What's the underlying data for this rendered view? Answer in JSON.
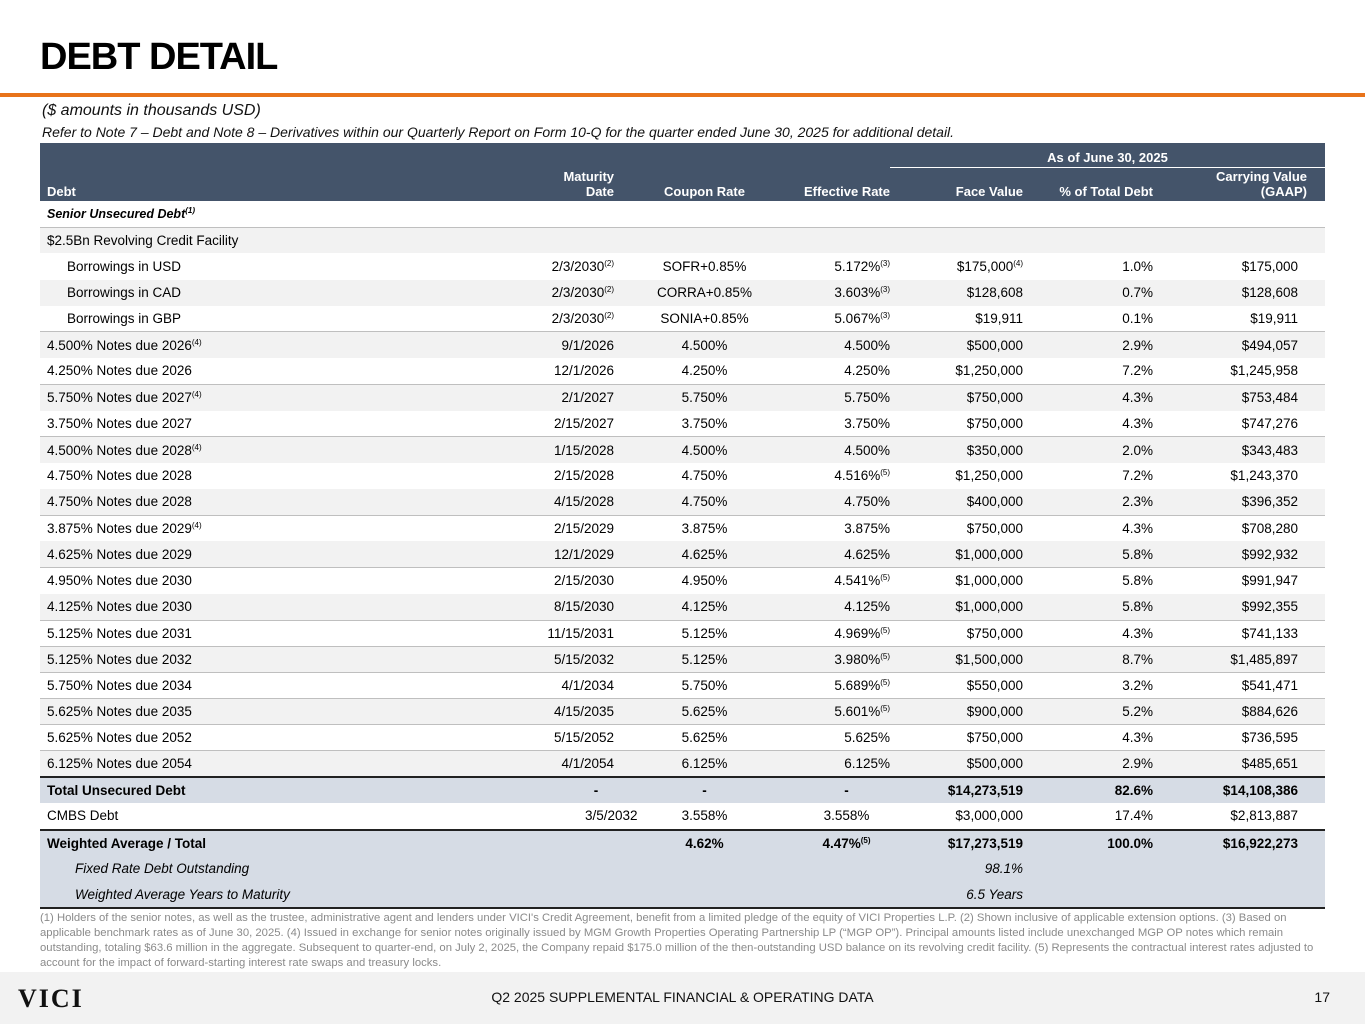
{
  "title": "DEBT DETAIL",
  "subtitle": "($ amounts in thousands USD)",
  "reference": "Refer to Note 7 – Debt and Note 8 – Derivatives within our Quarterly Report on Form 10-Q for the quarter ended June 30, 2025 for additional detail.",
  "header": {
    "as_of": "As of June 30, 2025",
    "debt": "Debt",
    "maturity": "Maturity Date",
    "coupon": "Coupon Rate",
    "effective": "Effective Rate",
    "face": "Face Value",
    "pct": "% of Total Debt",
    "carrying": "Carrying Value (GAAP)"
  },
  "section": {
    "label": "Senior Unsecured Debt",
    "sup": "(1)"
  },
  "facility": "$2.5Bn Revolving Credit Facility",
  "rows": [
    {
      "name": "Borrowings in USD",
      "ns": "",
      "mat": "2/3/2030",
      "ms": "(2)",
      "coupon": "SOFR+0.85%",
      "eff": "5.172%",
      "es": "(3)",
      "face": "$175,000",
      "fs": "(4)",
      "pct": "1.0%",
      "carry": "$175,000"
    },
    {
      "name": "Borrowings in CAD",
      "ns": "",
      "mat": "2/3/2030",
      "ms": "(2)",
      "coupon": "CORRA+0.85%",
      "eff": "3.603%",
      "es": "(3)",
      "face": "$128,608",
      "fs": "",
      "pct": "0.7%",
      "carry": "$128,608"
    },
    {
      "name": "Borrowings in GBP",
      "ns": "",
      "mat": "2/3/2030",
      "ms": "(2)",
      "coupon": "SONIA+0.85%",
      "eff": "5.067%",
      "es": "(3)",
      "face": "$19,911",
      "fs": "",
      "pct": "0.1%",
      "carry": "$19,911"
    },
    {
      "name": "4.500% Notes due 2026",
      "ns": "(4)",
      "mat": "9/1/2026",
      "ms": "",
      "coupon": "4.500%",
      "eff": "4.500%",
      "es": "",
      "face": "$500,000",
      "fs": "",
      "pct": "2.9%",
      "carry": "$494,057"
    },
    {
      "name": "4.250% Notes due 2026",
      "ns": "",
      "mat": "12/1/2026",
      "ms": "",
      "coupon": "4.250%",
      "eff": "4.250%",
      "es": "",
      "face": "$1,250,000",
      "fs": "",
      "pct": "7.2%",
      "carry": "$1,245,958"
    },
    {
      "name": "5.750% Notes due 2027",
      "ns": "(4)",
      "mat": "2/1/2027",
      "ms": "",
      "coupon": "5.750%",
      "eff": "5.750%",
      "es": "",
      "face": "$750,000",
      "fs": "",
      "pct": "4.3%",
      "carry": "$753,484"
    },
    {
      "name": "3.750% Notes due 2027",
      "ns": "",
      "mat": "2/15/2027",
      "ms": "",
      "coupon": "3.750%",
      "eff": "3.750%",
      "es": "",
      "face": "$750,000",
      "fs": "",
      "pct": "4.3%",
      "carry": "$747,276"
    },
    {
      "name": "4.500% Notes due 2028",
      "ns": "(4)",
      "mat": "1/15/2028",
      "ms": "",
      "coupon": "4.500%",
      "eff": "4.500%",
      "es": "",
      "face": "$350,000",
      "fs": "",
      "pct": "2.0%",
      "carry": "$343,483"
    },
    {
      "name": "4.750% Notes due 2028",
      "ns": "",
      "mat": "2/15/2028",
      "ms": "",
      "coupon": "4.750%",
      "eff": "4.516%",
      "es": "(5)",
      "face": "$1,250,000",
      "fs": "",
      "pct": "7.2%",
      "carry": "$1,243,370"
    },
    {
      "name": "4.750% Notes due 2028",
      "ns": "",
      "mat": "4/15/2028",
      "ms": "",
      "coupon": "4.750%",
      "eff": "4.750%",
      "es": "",
      "face": "$400,000",
      "fs": "",
      "pct": "2.3%",
      "carry": "$396,352"
    },
    {
      "name": "3.875% Notes due 2029",
      "ns": "(4)",
      "mat": "2/15/2029",
      "ms": "",
      "coupon": "3.875%",
      "eff": "3.875%",
      "es": "",
      "face": "$750,000",
      "fs": "",
      "pct": "4.3%",
      "carry": "$708,280"
    },
    {
      "name": "4.625% Notes due 2029",
      "ns": "",
      "mat": "12/1/2029",
      "ms": "",
      "coupon": "4.625%",
      "eff": "4.625%",
      "es": "",
      "face": "$1,000,000",
      "fs": "",
      "pct": "5.8%",
      "carry": "$992,932"
    },
    {
      "name": "4.950% Notes due 2030",
      "ns": "",
      "mat": "2/15/2030",
      "ms": "",
      "coupon": "4.950%",
      "eff": "4.541%",
      "es": "(5)",
      "face": "$1,000,000",
      "fs": "",
      "pct": "5.8%",
      "carry": "$991,947"
    },
    {
      "name": "4.125% Notes due 2030",
      "ns": "",
      "mat": "8/15/2030",
      "ms": "",
      "coupon": "4.125%",
      "eff": "4.125%",
      "es": "",
      "face": "$1,000,000",
      "fs": "",
      "pct": "5.8%",
      "carry": "$992,355"
    },
    {
      "name": "5.125% Notes due 2031",
      "ns": "",
      "mat": "11/15/2031",
      "ms": "",
      "coupon": "5.125%",
      "eff": "4.969%",
      "es": "(5)",
      "face": "$750,000",
      "fs": "",
      "pct": "4.3%",
      "carry": "$741,133"
    },
    {
      "name": "5.125% Notes due 2032",
      "ns": "",
      "mat": "5/15/2032",
      "ms": "",
      "coupon": "5.125%",
      "eff": "3.980%",
      "es": "(5)",
      "face": "$1,500,000",
      "fs": "",
      "pct": "8.7%",
      "carry": "$1,485,897"
    },
    {
      "name": "5.750% Notes due 2034",
      "ns": "",
      "mat": "4/1/2034",
      "ms": "",
      "coupon": "5.750%",
      "eff": "5.689%",
      "es": "(5)",
      "face": "$550,000",
      "fs": "",
      "pct": "3.2%",
      "carry": "$541,471"
    },
    {
      "name": "5.625% Notes due 2035",
      "ns": "",
      "mat": "4/15/2035",
      "ms": "",
      "coupon": "5.625%",
      "eff": "5.601%",
      "es": "(5)",
      "face": "$900,000",
      "fs": "",
      "pct": "5.2%",
      "carry": "$884,626"
    },
    {
      "name": "5.625% Notes due 2052",
      "ns": "",
      "mat": "5/15/2052",
      "ms": "",
      "coupon": "5.625%",
      "eff": "5.625%",
      "es": "",
      "face": "$750,000",
      "fs": "",
      "pct": "4.3%",
      "carry": "$736,595"
    },
    {
      "name": "6.125% Notes due 2054",
      "ns": "",
      "mat": "4/1/2054",
      "ms": "",
      "coupon": "6.125%",
      "eff": "6.125%",
      "es": "",
      "face": "$500,000",
      "fs": "",
      "pct": "2.9%",
      "carry": "$485,651"
    }
  ],
  "total_unsecured": {
    "name": "Total Unsecured Debt",
    "mat": "-",
    "coupon": "-",
    "eff": "-",
    "face": "$14,273,519",
    "pct": "82.6%",
    "carry": "$14,108,386"
  },
  "cmbs": {
    "name": "CMBS Debt",
    "mat": "3/5/2032",
    "coupon": "3.558%",
    "eff": "3.558%",
    "face": "$3,000,000",
    "pct": "17.4%",
    "carry": "$2,813,887"
  },
  "weighted": {
    "name": "Weighted Average / Total",
    "coupon": "4.62%",
    "eff": "4.47%",
    "es": "(5)",
    "face": "$17,273,519",
    "pct": "100.0%",
    "carry": "$16,922,273"
  },
  "fixed": {
    "name": "Fixed Rate Debt Outstanding",
    "value": "98.1%"
  },
  "years": {
    "name": "Weighted Average Years to Maturity",
    "value": "6.5 Years"
  },
  "footnotes": "(1) Holders of the senior notes, as well as the trustee, administrative agent and lenders under VICI's Credit Agreement, benefit from a limited pledge of the equity of VICI Properties L.P. (2) Shown inclusive of applicable extension options. (3) Based on applicable benchmark rates as of June 30, 2025. (4) Issued in exchange for senior notes originally issued by MGM Growth Properties Operating Partnership LP (“MGP OP”). Principal amounts listed include unexchanged MGP OP notes which remain outstanding, totaling $63.6 million in the aggregate. Subsequent to quarter-end, on July 2, 2025, the Company repaid $175.0 million of the then-outstanding USD balance on its revolving credit facility. (5) Represents the contractual interest rates adjusted to account for the impact of forward-starting interest rate swaps and treasury locks.",
  "footer": {
    "logo": "VICI",
    "text": "Q2 2025 SUPPLEMENTAL FINANCIAL & OPERATING DATA",
    "page": "17"
  },
  "colors": {
    "accent": "#e8731a",
    "header_bg": "#44546a",
    "total_bg": "#d6dce5"
  }
}
